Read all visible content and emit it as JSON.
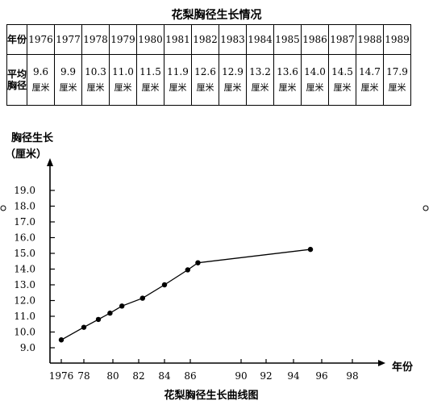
{
  "table": {
    "title": "花梨胸径生长情况",
    "year_header": "年份",
    "value_header": "平均胸径",
    "unit": "厘米",
    "years": [
      "1976",
      "1977",
      "1978",
      "1979",
      "1980",
      "1981",
      "1982",
      "1983",
      "1984",
      "1985",
      "1986",
      "1987",
      "1988",
      "1989"
    ],
    "values": [
      "9.6",
      "9.9",
      "10.3",
      "11.0",
      "11.5",
      "11.9",
      "12.6",
      "12.9",
      "13.2",
      "13.6",
      "14.0",
      "14.5",
      "14.7",
      "17.9"
    ]
  },
  "chart_data": {
    "type": "line",
    "title": "花梨胸径生长曲线图",
    "ylabel_line1": "胸径生长",
    "ylabel_line2": "（厘米）",
    "xlabel": "年份",
    "x_ticks": [
      "1976",
      "78",
      "80",
      "82",
      "84",
      "86",
      "90",
      "92",
      "94",
      "96",
      "98"
    ],
    "y_ticks": [
      "9.0",
      "10.0",
      "11.0",
      "12.0",
      "13.0",
      "14.0",
      "15.0",
      "16.0",
      "17.0",
      "18.0",
      "19.0"
    ],
    "ylim": [
      9.0,
      19.0
    ],
    "series": [
      {
        "points": [
          {
            "x": 1976,
            "y": 9.5
          },
          {
            "x": 1978,
            "y": 10.3
          },
          {
            "x": 1979,
            "y": 10.8
          },
          {
            "x": 1979.8,
            "y": 11.2
          },
          {
            "x": 1980.7,
            "y": 11.65
          },
          {
            "x": 1982.3,
            "y": 12.15
          },
          {
            "x": 1984,
            "y": 13.0
          },
          {
            "x": 1985.8,
            "y": 13.95
          },
          {
            "x": 1986.6,
            "y": 14.4
          },
          {
            "x": 1995.2,
            "y": 15.25
          }
        ]
      }
    ],
    "grid": false
  },
  "colors": {
    "ink": "#000000",
    "background": "#ffffff"
  }
}
